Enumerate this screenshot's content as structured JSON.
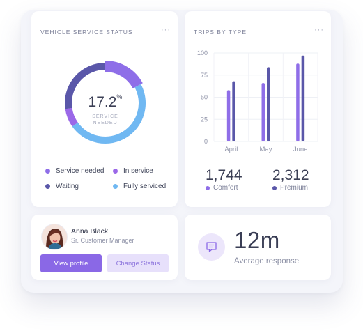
{
  "service_card": {
    "title": "VEHICLE SERVICE STATUS",
    "menu": "···",
    "donut": {
      "value": "17.2",
      "unit": "%",
      "caption_line1": "SERVICE",
      "caption_line2": "NEEDED",
      "segments": [
        {
          "name": "Service needed",
          "percent": 17.2,
          "color": "#8e6ee8"
        },
        {
          "name": "Fully serviced",
          "percent": 48.0,
          "color": "#70b8f2"
        },
        {
          "name": "In service",
          "percent": 7.5,
          "color": "#9b68e8"
        },
        {
          "name": "Waiting",
          "percent": 27.3,
          "color": "#5a57a9"
        }
      ]
    },
    "legend": [
      {
        "label": "Service needed",
        "color": "#8e6ee8"
      },
      {
        "label": "In service",
        "color": "#9b68e8"
      },
      {
        "label": "Waiting",
        "color": "#5a57a9"
      },
      {
        "label": "Fully serviced",
        "color": "#70b8f2"
      }
    ]
  },
  "trips_card": {
    "title": "TRIPS BY TYPE",
    "menu": "···",
    "totals": [
      {
        "value": "1,744",
        "label": "Comfort",
        "color": "#8f6ee8"
      },
      {
        "value": "2,312",
        "label": "Premium",
        "color": "#5a57a9"
      }
    ]
  },
  "chart_data": {
    "type": "bar",
    "categories": [
      "April",
      "May",
      "June"
    ],
    "yticks": [
      "100",
      "75",
      "50",
      "25",
      "0"
    ],
    "ylim": [
      0,
      100
    ],
    "grid": true,
    "series": [
      {
        "name": "Comfort",
        "values": [
          58,
          66,
          88
        ],
        "color": "#8f6ee8"
      },
      {
        "name": "Premium",
        "values": [
          68,
          84,
          97
        ],
        "color": "#5a57a9"
      }
    ]
  },
  "profile_card": {
    "name": "Anna Black",
    "role": "Sr. Customer Manager",
    "primary_button": "View profile",
    "secondary_button": "Change Status"
  },
  "response_card": {
    "value": "12m",
    "label": "Average response"
  }
}
